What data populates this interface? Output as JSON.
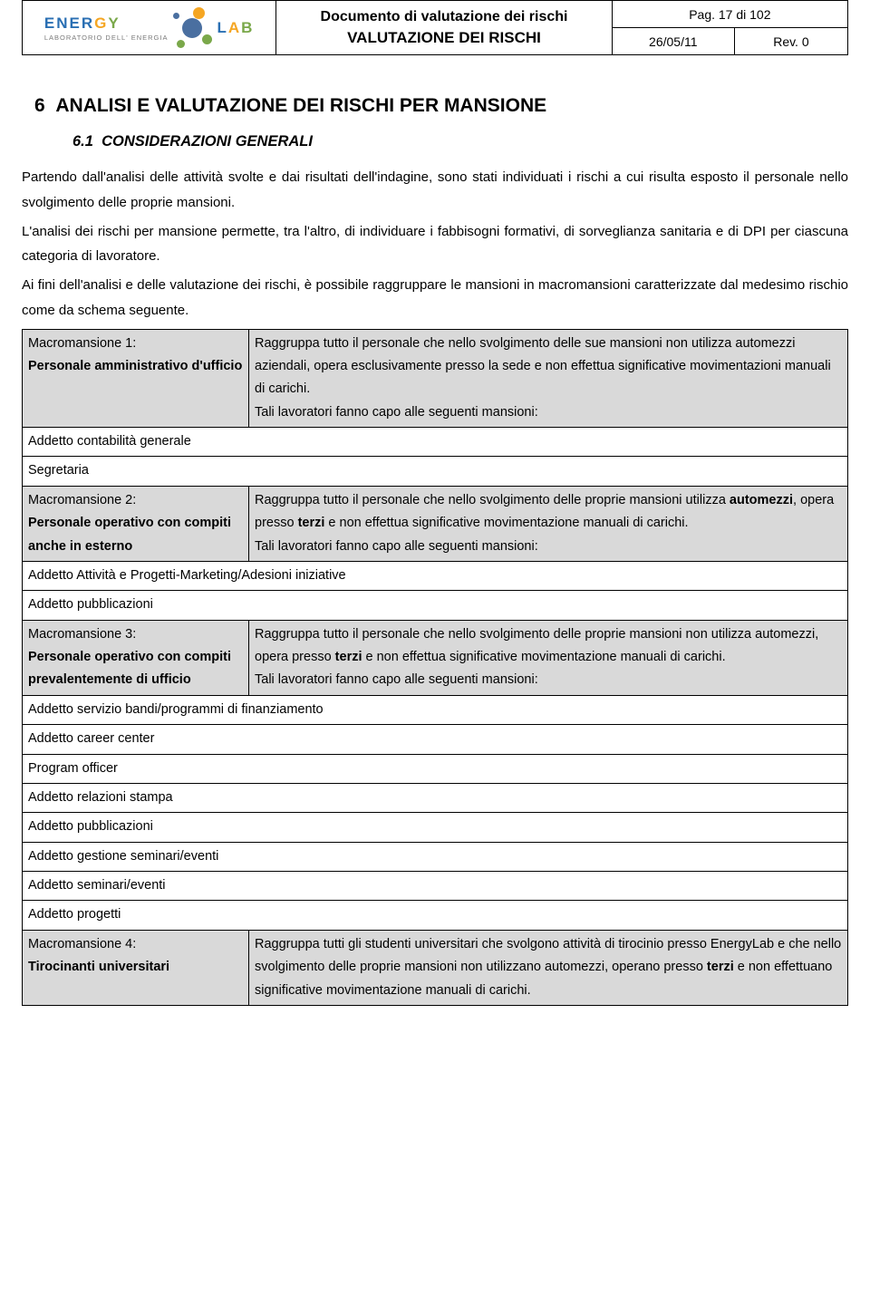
{
  "header": {
    "logo_main_1": "ENER",
    "logo_main_2": "G",
    "logo_main_3": "Y",
    "logo_brand2_1": "L",
    "logo_brand2_2": "A",
    "logo_brand2_3": "B",
    "logo_sub": "LABORATORIO DELL' ENERGIA",
    "doc_title_1": "Documento di valutazione dei rischi",
    "doc_title_2": "VALUTAZIONE DEI RISCHI",
    "page_no": "Pag. 17 di 102",
    "date": "26/05/11",
    "rev": "Rev. 0"
  },
  "section": {
    "num": "6",
    "title": "ANALISI E VALUTAZIONE DEI RISCHI PER MANSIONE",
    "sub_num": "6.1",
    "sub_title": "CONSIDERAZIONI GENERALI"
  },
  "paragraphs": {
    "p1": "Partendo dall'analisi delle attività svolte e dai risultati dell'indagine, sono stati individuati i rischi a cui risulta esposto il personale nello svolgimento delle proprie mansioni.",
    "p2": "L'analisi dei rischi per mansione permette, tra l'altro, di individuare i fabbisogni formativi, di sorveglianza sanitaria e di DPI per ciascuna categoria di lavoratore.",
    "p3": "Ai fini dell'analisi e delle valutazione dei rischi, è possibile raggruppare le mansioni in macromansioni caratterizzate dal medesimo rischio come da schema seguente."
  },
  "table": {
    "m1_label": "Macromansione 1:",
    "m1_name": "Personale amministrativo d'ufficio",
    "m1_desc_1": "Raggruppa tutto il personale che nello svolgimento delle sue mansioni non utilizza automezzi aziendali, opera esclusivamente presso la sede e non effettua significative movimentazioni manuali di carichi.",
    "m1_desc_2": "Tali lavoratori fanno capo alle seguenti mansioni:",
    "m1_row1": "Addetto contabilità generale",
    "m1_row2": "Segretaria",
    "m2_label": "Macromansione 2:",
    "m2_name": "Personale operativo con compiti anche in esterno",
    "m2_desc_1a": "Raggruppa tutto il personale che nello svolgimento delle proprie mansioni utilizza ",
    "m2_desc_1b": "automezzi",
    "m2_desc_1c": ", opera presso ",
    "m2_desc_1d": "terzi",
    "m2_desc_1e": " e non effettua significative movimentazione manuali di carichi.",
    "m2_desc_2": "Tali lavoratori fanno capo alle seguenti mansioni:",
    "m2_row1": "Addetto Attività e Progetti-Marketing/Adesioni iniziative",
    "m2_row2": "Addetto pubblicazioni",
    "m3_label": "Macromansione 3:",
    "m3_name": "Personale operativo con compiti prevalentemente di ufficio",
    "m3_desc_1a": "Raggruppa tutto il personale che nello svolgimento delle proprie mansioni non utilizza automezzi, opera presso ",
    "m3_desc_1b": "terzi",
    "m3_desc_1c": " e non effettua significative movimentazione manuali di carichi.",
    "m3_desc_2": "Tali lavoratori fanno capo alle seguenti mansioni:",
    "m3_row1": "Addetto servizio bandi/programmi di finanziamento",
    "m3_row2": "Addetto career center",
    "m3_row3": "Program officer",
    "m3_row4": "Addetto relazioni stampa",
    "m3_row5": "Addetto pubblicazioni",
    "m3_row6": "Addetto gestione seminari/eventi",
    "m3_row7": "Addetto seminari/eventi",
    "m3_row8": "Addetto progetti",
    "m4_label": "Macromansione 4:",
    "m4_name": "Tirocinanti universitari",
    "m4_desc_a": "Raggruppa tutti gli studenti universitari che svolgono attività di tirocinio presso EnergyLab e che nello svolgimento delle proprie mansioni  non utilizzano automezzi, operano presso ",
    "m4_desc_b": "terzi",
    "m4_desc_c": " e non effettuano significative movimentazione manuali di carichi."
  }
}
